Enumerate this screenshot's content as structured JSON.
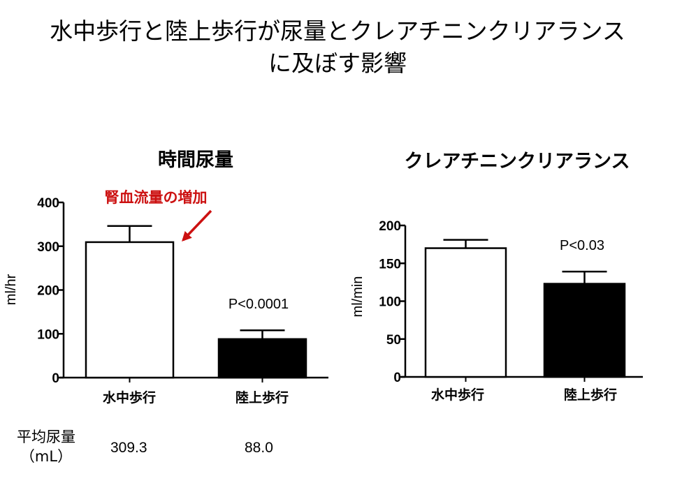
{
  "main_title": {
    "line1": "水中歩行と陸上歩行が尿量とクレアチニンクリアランス",
    "line2": "に及ぼす影響"
  },
  "chart_data": [
    {
      "type": "bar",
      "title": "時間尿量",
      "categories": [
        "水中歩行",
        "陸上歩行"
      ],
      "values": [
        309.3,
        88.0
      ],
      "errors": [
        37,
        20
      ],
      "bar_colors": [
        "#ffffff",
        "#000000"
      ],
      "ylabel": "ml/hr",
      "ylim": [
        0,
        400
      ],
      "yticks": [
        "0",
        "100",
        "200",
        "300",
        "400"
      ],
      "pvalue": "P<0.0001",
      "annotation": "腎血流量の増加",
      "annotation_color": "#cc1111"
    },
    {
      "type": "bar",
      "title": "クレアチニンクリアランス",
      "categories": [
        "水中歩行",
        "陸上歩行"
      ],
      "values": [
        170,
        123
      ],
      "errors": [
        11,
        16
      ],
      "bar_colors": [
        "#ffffff",
        "#000000"
      ],
      "ylabel": "ml/min",
      "ylim": [
        0,
        200
      ],
      "yticks": [
        "0",
        "50",
        "100",
        "150",
        "200"
      ],
      "pvalue": "P<0.03"
    }
  ],
  "footer": {
    "label_line1": "平均尿量",
    "label_line2": "（mL）",
    "values": [
      "309.3",
      "88.0"
    ]
  }
}
